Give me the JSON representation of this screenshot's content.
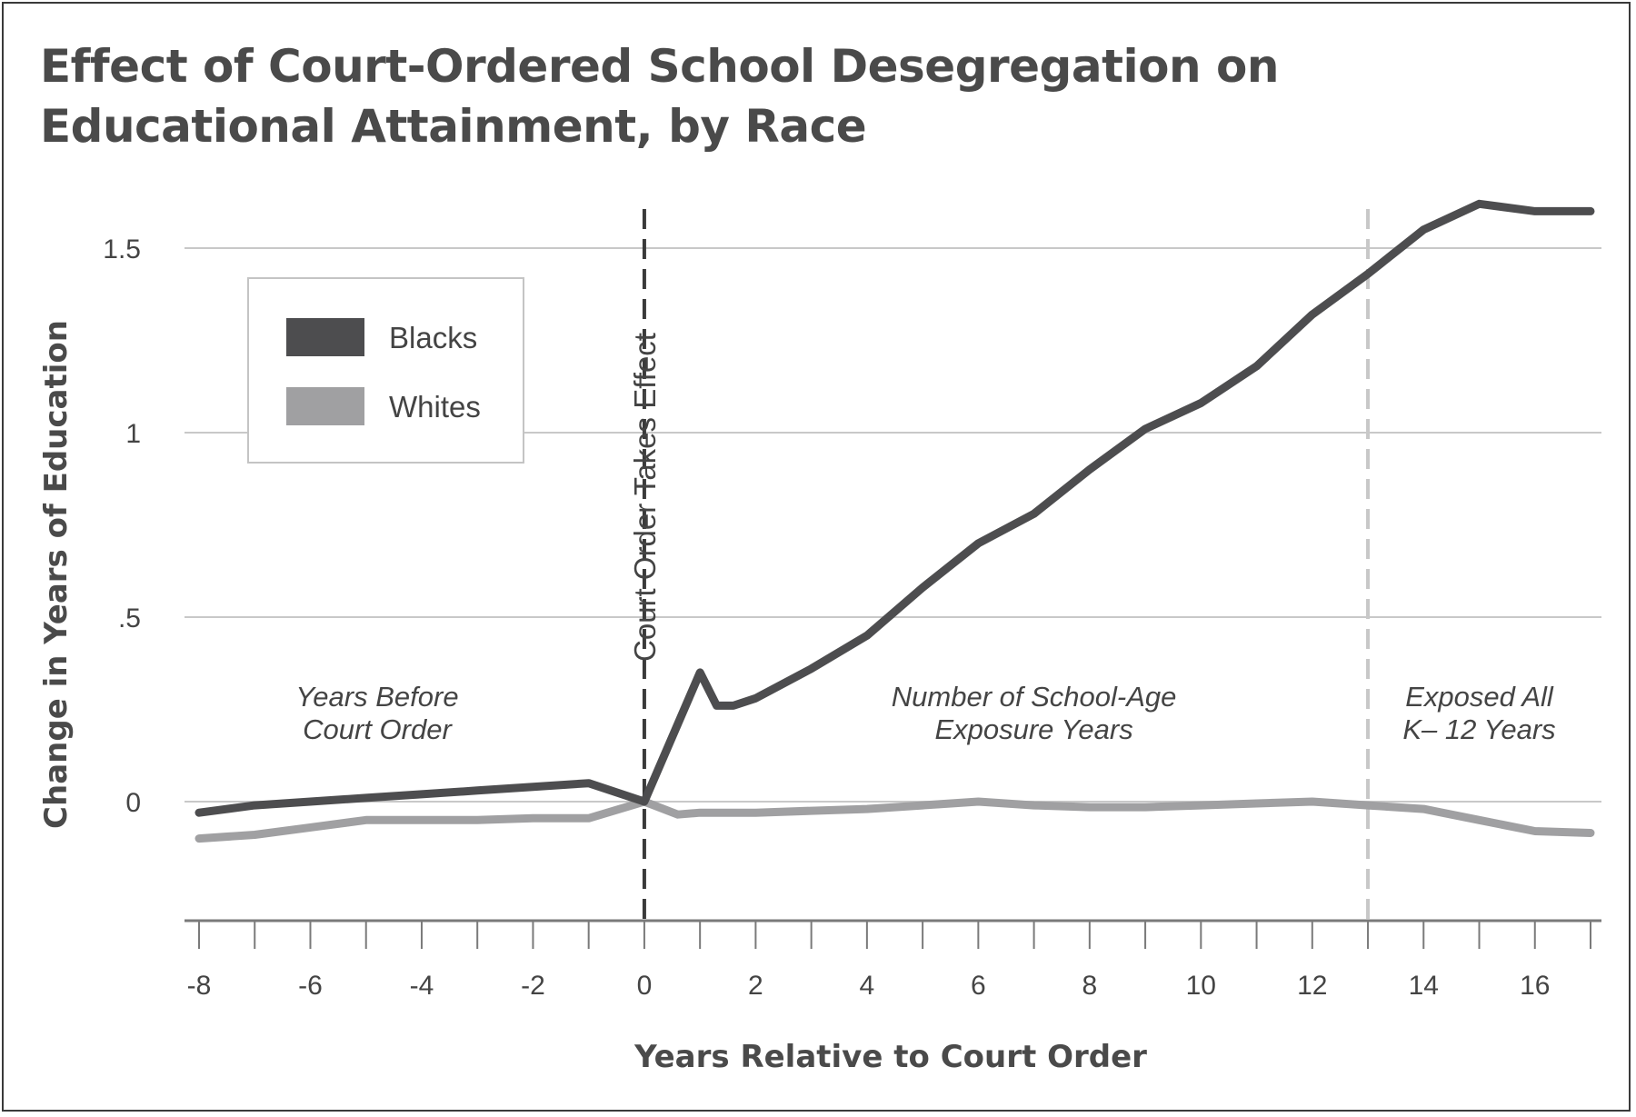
{
  "chart_data": {
    "type": "line",
    "title_lines": [
      "Effect of Court-Ordered School Desegregation on",
      "Educational Attainment, by Race"
    ],
    "xlabel": "Years Relative to Court Order",
    "ylabel": "Change in Years of Education",
    "xlim": [
      -8,
      17
    ],
    "ylim": [
      -0.32,
      1.7
    ],
    "x_ticks": [
      {
        "value": -8,
        "label": "-8"
      },
      {
        "value": -6,
        "label": "-6"
      },
      {
        "value": -4,
        "label": "-4"
      },
      {
        "value": -2,
        "label": "-2"
      },
      {
        "value": 0,
        "label": "0"
      },
      {
        "value": 2,
        "label": "2"
      },
      {
        "value": 4,
        "label": "4"
      },
      {
        "value": 6,
        "label": "6"
      },
      {
        "value": 8,
        "label": "8"
      },
      {
        "value": 10,
        "label": "10"
      },
      {
        "value": 12,
        "label": "12"
      },
      {
        "value": 14,
        "label": "14"
      },
      {
        "value": 16,
        "label": "16"
      }
    ],
    "y_ticks": [
      {
        "value": 0,
        "label": "0"
      },
      {
        "value": 0.5,
        "label": ".5"
      },
      {
        "value": 1,
        "label": "1"
      },
      {
        "value": 1.5,
        "label": "1.5"
      }
    ],
    "grid": "horizontal",
    "legend_position": "upper-left",
    "series": [
      {
        "name": "Blacks",
        "color": "#4d4d4f",
        "x": [
          -8,
          -7,
          -6,
          -5,
          -4,
          -3,
          -2,
          -1,
          0,
          1,
          1.3,
          1.6,
          2,
          3,
          4,
          5,
          6,
          7,
          8,
          9,
          10,
          11,
          12,
          13,
          14,
          15,
          16,
          17
        ],
        "y": [
          -0.03,
          -0.01,
          0.0,
          0.01,
          0.02,
          0.03,
          0.04,
          0.05,
          0.0,
          0.35,
          0.26,
          0.26,
          0.28,
          0.36,
          0.45,
          0.58,
          0.7,
          0.78,
          0.9,
          1.01,
          1.08,
          1.18,
          1.32,
          1.43,
          1.55,
          1.62,
          1.6,
          1.6
        ]
      },
      {
        "name": "Whites",
        "color": "#a0a0a2",
        "x": [
          -8,
          -7,
          -6,
          -5,
          -4,
          -3,
          -2,
          -1,
          0,
          0.6,
          1,
          2,
          3,
          4,
          5,
          6,
          7,
          8,
          9,
          10,
          11,
          12,
          13,
          14,
          15,
          16,
          17
        ],
        "y": [
          -0.1,
          -0.09,
          -0.07,
          -0.05,
          -0.05,
          -0.05,
          -0.045,
          -0.045,
          0.0,
          -0.035,
          -0.03,
          -0.03,
          -0.025,
          -0.02,
          -0.01,
          0.0,
          -0.01,
          -0.015,
          -0.015,
          -0.01,
          -0.005,
          0.0,
          -0.01,
          -0.02,
          -0.05,
          -0.08,
          -0.085
        ]
      }
    ],
    "reference_lines": [
      {
        "x": 0,
        "label": "Court Order Takes Effect",
        "color": "#3a3a3a"
      },
      {
        "x": 13,
        "label": "",
        "color": "#c8c8c8"
      }
    ],
    "annotations": [
      {
        "lines": [
          "Years Before",
          "Court Order"
        ],
        "x": -4.8
      },
      {
        "lines": [
          "Number of School-Age",
          "Exposure Years"
        ],
        "x": 7
      },
      {
        "lines": [
          "Exposed All",
          "K– 12 Years"
        ],
        "x": 15
      }
    ]
  }
}
